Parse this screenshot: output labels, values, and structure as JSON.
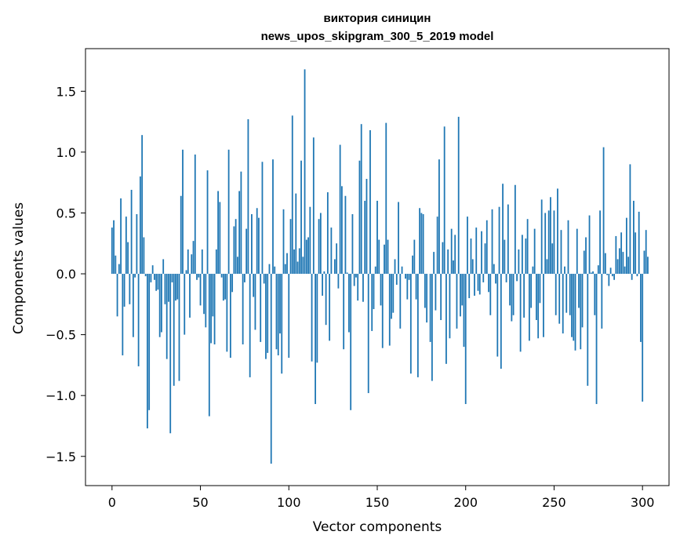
{
  "chart_data": {
    "type": "bar",
    "title": "виктория синицин",
    "subtitle": "news_upos_skipgram_300_5_2019 model",
    "xlabel": "Vector components",
    "ylabel": "Components values",
    "xlim": [
      -15,
      315
    ],
    "ylim": [
      -1.74,
      1.85
    ],
    "x_ticks": [
      0,
      50,
      100,
      150,
      200,
      250,
      300
    ],
    "x_tick_labels": [
      "0",
      "50",
      "100",
      "150",
      "200",
      "250",
      "300"
    ],
    "y_ticks": [
      1.5,
      1.0,
      0.5,
      0.0,
      -0.5,
      -1.0,
      -1.5
    ],
    "y_tick_labels": [
      "1.5",
      "1.0",
      "0.5",
      "0.0",
      "−0.5",
      "−1.0",
      "−1.5"
    ],
    "grid": false,
    "color": "#1f77b4",
    "values": [
      0.38,
      0.44,
      0.15,
      -0.35,
      0.08,
      0.62,
      -0.67,
      -0.27,
      0.47,
      0.26,
      -0.25,
      0.69,
      -0.52,
      -0.03,
      0.49,
      -0.76,
      0.8,
      1.14,
      0.3,
      -0.02,
      -1.27,
      -1.12,
      -0.07,
      0.07,
      -0.05,
      -0.14,
      -0.13,
      -0.52,
      -0.48,
      0.12,
      -0.25,
      -0.7,
      -0.23,
      -1.31,
      -0.07,
      -0.92,
      -0.22,
      -0.21,
      -0.88,
      0.64,
      1.02,
      -0.5,
      0.03,
      0.2,
      -0.36,
      0.16,
      0.27,
      0.98,
      -0.05,
      -0.03,
      -0.26,
      0.2,
      -0.33,
      -0.44,
      0.85,
      -1.17,
      -0.57,
      -0.35,
      -0.58,
      0.2,
      0.68,
      0.59,
      -0.03,
      -0.22,
      -0.21,
      -0.64,
      1.02,
      -0.69,
      -0.15,
      0.39,
      0.45,
      0.14,
      0.68,
      0.84,
      -0.58,
      -0.07,
      0.37,
      1.27,
      -0.85,
      0.49,
      -0.19,
      -0.46,
      0.54,
      0.46,
      -0.56,
      0.92,
      -0.08,
      -0.7,
      -0.65,
      0.08,
      -1.56,
      0.94,
      0.06,
      -0.62,
      -0.67,
      -0.49,
      -0.82,
      0.53,
      0.08,
      0.17,
      -0.69,
      0.45,
      1.3,
      0.2,
      0.66,
      0.1,
      0.21,
      0.93,
      0.14,
      1.68,
      0.28,
      0.3,
      0.55,
      -0.72,
      1.12,
      -1.07,
      -0.73,
      0.45,
      0.5,
      -0.18,
      0.02,
      -0.42,
      0.67,
      -0.55,
      0.38,
      0.0,
      0.12,
      0.25,
      -0.12,
      1.06,
      0.72,
      -0.62,
      0.64,
      0.01,
      -0.48,
      -1.12,
      0.49,
      -0.1,
      -0.03,
      -0.22,
      0.93,
      1.23,
      -0.23,
      0.6,
      0.78,
      -0.98,
      1.18,
      -0.47,
      -0.29,
      0.06,
      0.6,
      0.28,
      -0.26,
      -0.61,
      0.24,
      1.24,
      0.28,
      -0.59,
      -0.37,
      -0.32,
      0.12,
      -0.09,
      0.59,
      -0.45,
      0.06,
      0.0,
      -0.04,
      -0.21,
      -0.05,
      -0.82,
      0.15,
      0.28,
      -0.21,
      -0.85,
      0.54,
      0.5,
      0.49,
      -0.28,
      -0.4,
      0.0,
      -0.56,
      -0.88,
      0.18,
      -0.3,
      0.47,
      0.94,
      -0.38,
      0.26,
      1.21,
      -0.74,
      0.2,
      -0.53,
      0.37,
      0.11,
      0.32,
      -0.45,
      1.29,
      -0.35,
      -0.26,
      -0.6,
      -1.07,
      0.47,
      -0.2,
      0.29,
      0.12,
      -0.18,
      0.38,
      -0.14,
      -0.17,
      0.35,
      -0.07,
      0.25,
      0.44,
      -0.15,
      -0.34,
      0.53,
      0.08,
      -0.08,
      -0.68,
      0.55,
      -0.78,
      0.74,
      0.28,
      -0.07,
      0.57,
      -0.26,
      -0.39,
      -0.34,
      0.73,
      -0.06,
      0.2,
      -0.64,
      0.32,
      -0.36,
      0.29,
      0.45,
      -0.55,
      -0.28,
      0.06,
      0.37,
      -0.38,
      -0.53,
      -0.24,
      0.61,
      -0.52,
      0.5,
      0.12,
      0.52,
      0.63,
      0.25,
      0.52,
      -0.34,
      0.7,
      -0.41,
      0.36,
      -0.49,
      0.06,
      -0.32,
      0.44,
      -0.34,
      -0.52,
      -0.55,
      -0.63,
      0.37,
      -0.28,
      -0.62,
      -0.44,
      0.19,
      0.3,
      -0.92,
      0.48,
      0.01,
      0.02,
      -0.34,
      -1.07,
      0.07,
      0.52,
      -0.45,
      1.04,
      0.17,
      -0.01,
      -0.1,
      0.05,
      -0.02,
      -0.05,
      0.31,
      0.12,
      0.21,
      0.34,
      0.18,
      0.06,
      0.46,
      0.14,
      0.9,
      -0.05,
      0.6,
      0.34,
      -0.02,
      0.51,
      -0.56,
      -1.05,
      0.19,
      0.36,
      0.14
    ]
  }
}
